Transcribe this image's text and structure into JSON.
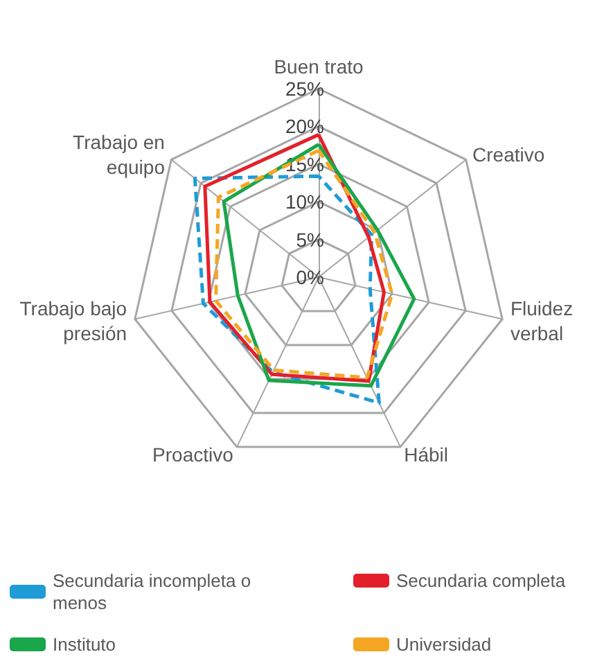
{
  "chart_data": {
    "type": "radar",
    "categories": [
      "Buen trato",
      "Creativo",
      "Fluidez verbal",
      "Hábil",
      "Proactivo",
      "Trabajo bajo presión",
      "Trabajo en equipo"
    ],
    "series": [
      {
        "name": "Secundaria incompleta o menos",
        "color": "#1f9bd7",
        "line_style": "dashed",
        "values": [
          13.4,
          9,
          7,
          18.5,
          14,
          15.7,
          21
        ]
      },
      {
        "name": "Secundaria completa",
        "color": "#e3202a",
        "line_style": "solid",
        "values": [
          18.9,
          8.5,
          8.9,
          15.3,
          14.3,
          14.8,
          19.3
        ]
      },
      {
        "name": "Instituto",
        "color": "#1aa64a",
        "line_style": "solid",
        "values": [
          17.6,
          10,
          13,
          16,
          15.2,
          11,
          16.1
        ]
      },
      {
        "name": "Universidad",
        "color": "#f5a623",
        "line_style": "dashed",
        "values": [
          16.8,
          9.5,
          10,
          14.8,
          13.7,
          14,
          17
        ]
      }
    ],
    "ylim": [
      0,
      25
    ],
    "yticks": [
      {
        "value": 0,
        "label": "0%"
      },
      {
        "value": 5,
        "label": "5%"
      },
      {
        "value": 10,
        "label": "10%"
      },
      {
        "value": 15,
        "label": "15%"
      },
      {
        "value": 20,
        "label": "20%"
      },
      {
        "value": 25,
        "label": "25%"
      }
    ],
    "marker": "none",
    "legend": "bottom"
  }
}
